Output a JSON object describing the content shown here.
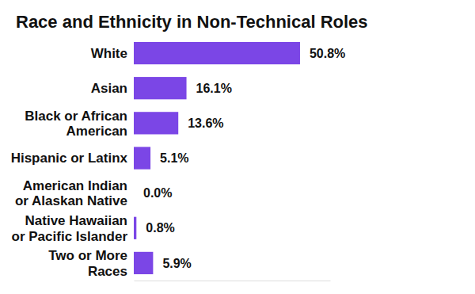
{
  "chart_data": {
    "type": "bar",
    "orientation": "horizontal",
    "title": "Race and Ethnicity in Non-Technical Roles",
    "categories": [
      "White",
      "Asian",
      "Black or African American",
      "Hispanic or Latinx",
      "American Indian or Alaskan Native",
      "Native Hawaiian or Pacific Islander",
      "Two or More Races"
    ],
    "values": [
      50.8,
      16.1,
      13.6,
      5.1,
      0.0,
      0.8,
      5.9
    ],
    "value_labels": [
      "50.8%",
      "16.1%",
      "13.6%",
      "5.1%",
      "0.0%",
      "0.8%",
      "5.9%"
    ],
    "color": "#7b46e6",
    "xlim": [
      0,
      60
    ],
    "data_labels": true,
    "tick_labels": "y",
    "grid": false
  }
}
